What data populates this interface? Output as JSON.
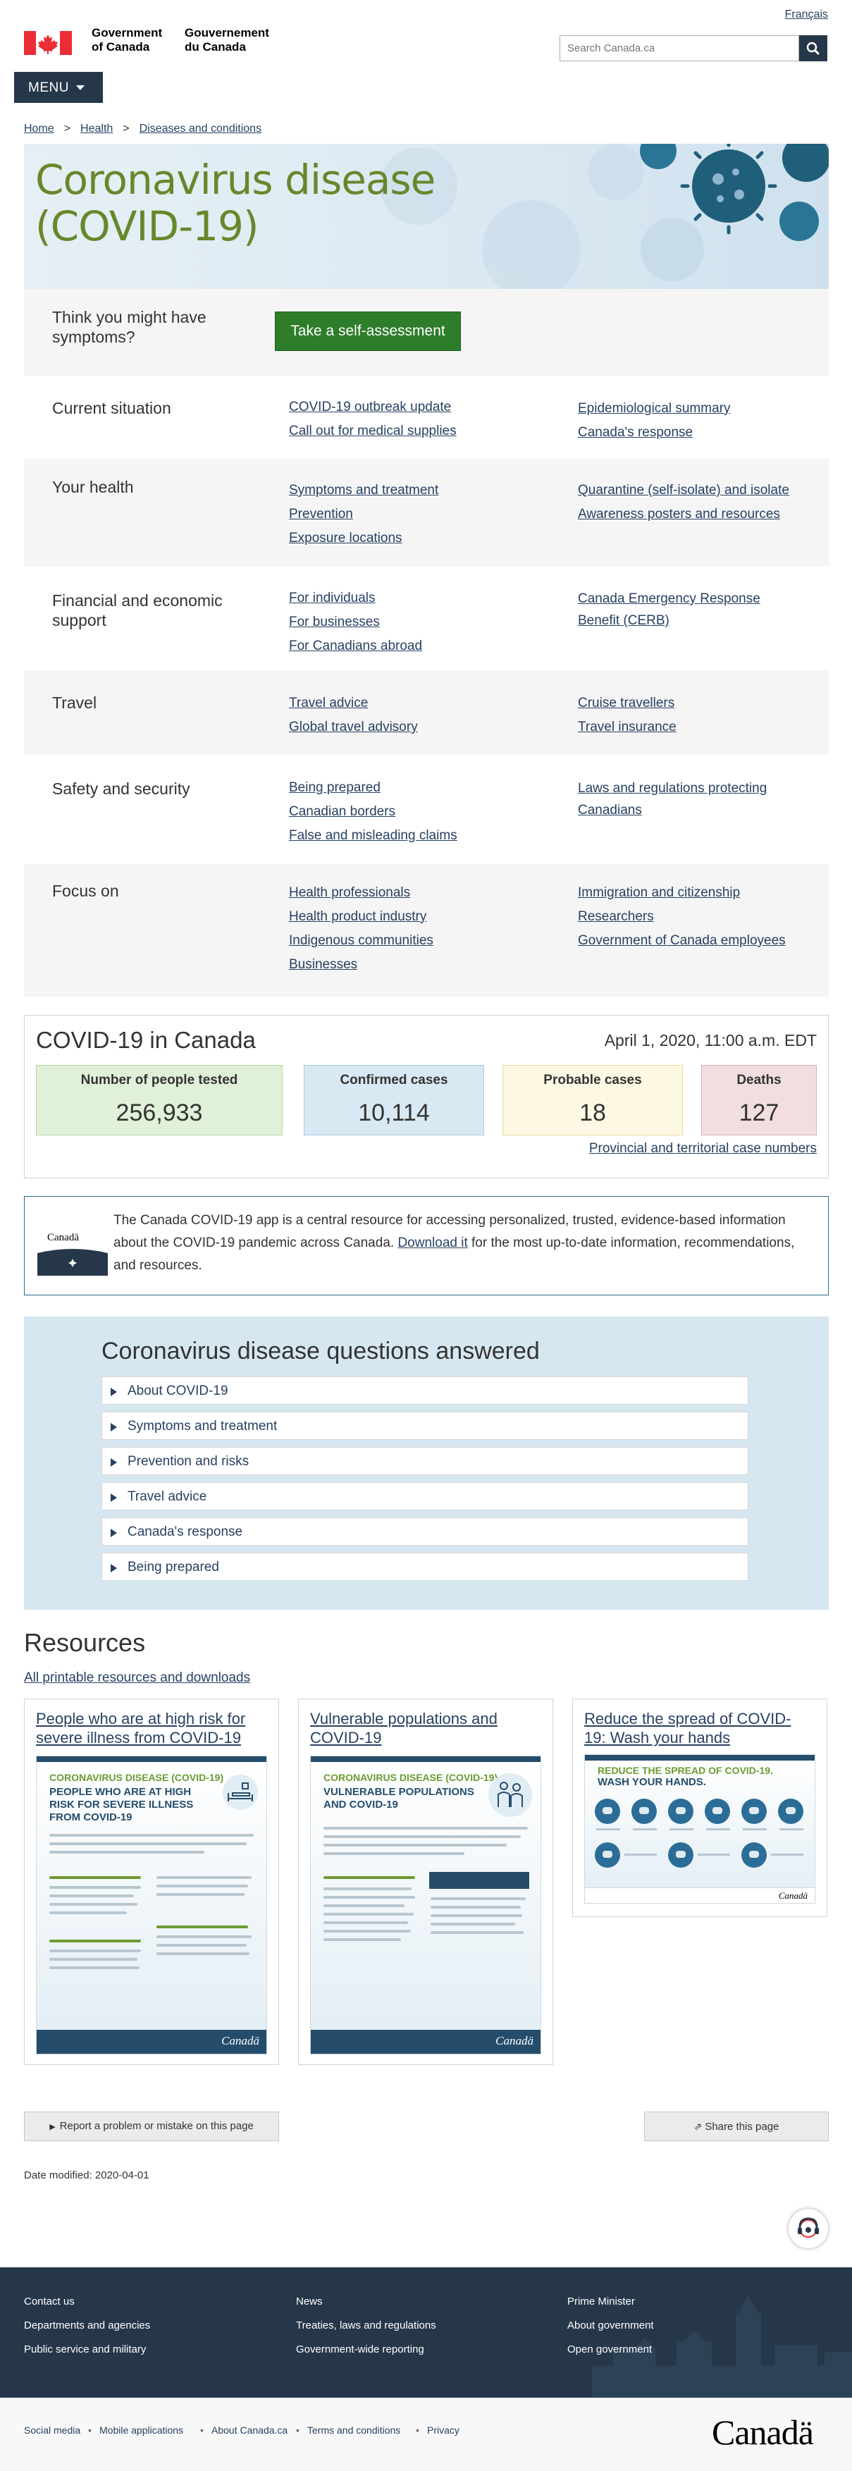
{
  "header": {
    "language_toggle": "Français",
    "gov_en": [
      "Government",
      "of Canada"
    ],
    "gov_fr": [
      "Gouvernement",
      "du Canada"
    ],
    "search_placeholder": "Search Canada.ca",
    "menu_label": "MENU"
  },
  "breadcrumb": [
    "Home",
    "Health",
    "Diseases and conditions"
  ],
  "hero": {
    "title_line1": "Coronavirus disease",
    "title_line2": "(COVID-19)"
  },
  "symptoms": {
    "question": [
      "Think you might have",
      "symptoms?"
    ],
    "button_label": "Take a self-assessment"
  },
  "sections": [
    {
      "title": [
        "Current situation"
      ],
      "col1": [
        "COVID-19 outbreak update",
        "Call out for medical supplies"
      ],
      "col2": [
        "Epidemiological summary",
        "Canada's response"
      ]
    },
    {
      "title": [
        "Your health"
      ],
      "col1": [
        "Symptoms and treatment",
        "Prevention",
        "Exposure locations"
      ],
      "col2": [
        "Quarantine (self-isolate) and isolate",
        "Awareness posters and resources"
      ]
    },
    {
      "title": [
        "Financial and economic",
        "support"
      ],
      "col1": [
        "For individuals",
        "For businesses",
        "For Canadians abroad"
      ],
      "col2": [
        "Canada Emergency Response",
        "Benefit (CERB)"
      ]
    },
    {
      "title": [
        "Travel"
      ],
      "col1": [
        "Travel advice",
        "Global travel advisory"
      ],
      "col2": [
        "Cruise travellers",
        "Travel insurance"
      ]
    },
    {
      "title": [
        "Safety and security"
      ],
      "col1": [
        "Being prepared",
        "Canadian borders",
        "False and misleading claims"
      ],
      "col2": [
        "Laws and regulations protecting",
        "Canadians"
      ]
    },
    {
      "title": [
        "Focus on"
      ],
      "col1": [
        "Health professionals",
        "Health product industry",
        "Indigenous communities",
        "Businesses"
      ],
      "col2": [
        "Immigration and citizenship",
        "Researchers",
        "Government of Canada employees"
      ]
    }
  ],
  "stats": {
    "title": "COVID-19 in Canada",
    "date": "April 1, 2020, 11:00 a.m. EDT",
    "items": [
      {
        "label": "Number of people tested",
        "value": "256,933",
        "bg": "#e1f0d8",
        "border": "#b7d7a3"
      },
      {
        "label": "Confirmed cases",
        "value": "10,114",
        "bg": "#d9e9f3",
        "border": "#a9cbe0"
      },
      {
        "label": "Probable cases",
        "value": "18",
        "bg": "#fcf8e3",
        "border": "#ecd99a"
      },
      {
        "label": "Deaths",
        "value": "127",
        "bg": "#f2dede",
        "border": "#dbb1b1"
      }
    ],
    "provincial_link": "Provincial and territorial case numbers"
  },
  "app_promo": {
    "logo_text": "Canadä",
    "text_before": "The Canada COVID-19 app is a central resource for accessing personalized, trusted, evidence-based information about the COVID-19 pandemic across Canada. ",
    "link": "Download it",
    "text_after": " for the most up-to-date information, recommendations, and resources."
  },
  "faq": {
    "title": "Coronavirus disease questions answered",
    "items": [
      "About COVID-19",
      "Symptoms and treatment",
      "Prevention and risks",
      "Travel advice",
      "Canada's response",
      "Being prepared"
    ]
  },
  "resources": {
    "title": "Resources",
    "link": "All printable resources and downloads",
    "cards": [
      {
        "title": "People who are at high risk for severe illness from COVID-19",
        "poster_kicker": "CORONAVIRUS DISEASE (COVID-19)",
        "poster_heading": "PEOPLE WHO ARE AT HIGH RISK FOR SEVERE ILLNESS FROM COVID-19"
      },
      {
        "title": "Vulnerable populations and COVID-19",
        "poster_kicker": "CORONAVIRUS DISEASE (COVID-19)",
        "poster_heading": "VULNERABLE POPULATIONS AND COVID-19"
      },
      {
        "title": "Reduce the spread of COVID-19: Wash your hands",
        "poster_kicker": "REDUCE THE SPREAD OF COVID-19.",
        "poster_heading": "WASH YOUR HANDS."
      }
    ],
    "poster_wordmark": "Canadä"
  },
  "page_actions": {
    "report": "Report a problem or mistake on this page",
    "share": "Share this page"
  },
  "date_modified": {
    "label": "Date modified:",
    "value": "2020-04-01"
  },
  "footer": {
    "col1": [
      "Contact us",
      "Departments and agencies",
      "Public service and military"
    ],
    "col2": [
      "News",
      "Treaties, laws and regulations",
      "Government-wide reporting"
    ],
    "col3": [
      "Prime Minister",
      "About government",
      "Open government"
    ],
    "sub_links": [
      "Social media",
      "Mobile applications",
      "About Canada.ca",
      "Terms and conditions",
      "Privacy"
    ],
    "wordmark": "Canadä"
  },
  "colors": {
    "gov_navy": "#26374a",
    "link": "#284162",
    "hero_green": "#66882b",
    "button_green": "#2d7d2a",
    "flag_red": "#eb2d37"
  }
}
